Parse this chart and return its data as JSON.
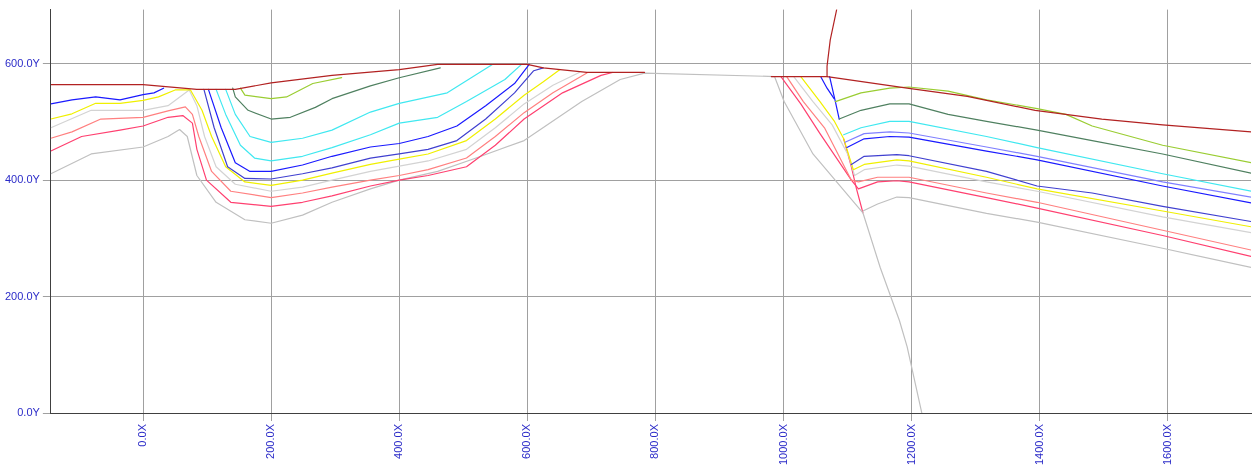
{
  "chart_data": {
    "type": "line",
    "marker": "none",
    "line_style": "solid",
    "grid": true,
    "legend": false,
    "xlim": [
      -144,
      1730
    ],
    "ylim": [
      0,
      693
    ],
    "xticks": [
      {
        "value": 0,
        "label": "0.0X"
      },
      {
        "value": 200,
        "label": "200.0X"
      },
      {
        "value": 400,
        "label": "400.0X"
      },
      {
        "value": 600,
        "label": "600.0X"
      },
      {
        "value": 800,
        "label": "800.0X"
      },
      {
        "value": 1000,
        "label": "1000.0X"
      },
      {
        "value": 1200,
        "label": "1200.0X"
      },
      {
        "value": 1400,
        "label": "1400.0X"
      },
      {
        "value": 1600,
        "label": "1600.0X"
      }
    ],
    "yticks": [
      {
        "value": 0,
        "label": "0.0Y"
      },
      {
        "value": 200,
        "label": "200.0Y"
      },
      {
        "value": 400,
        "label": "400.0Y"
      },
      {
        "value": 600,
        "label": "600.0Y"
      }
    ],
    "series": [
      {
        "color": "#b22222",
        "x": [
          -144,
          0,
          84,
          144,
          200,
          295,
          400,
          460,
          550,
          600,
          625,
          693,
          783
        ],
        "values": [
          564,
          564,
          556,
          556,
          567,
          580,
          590,
          599,
          599,
          599,
          593,
          585,
          585
        ]
      },
      {
        "color": "#b22222",
        "x": [
          981,
          1068,
          1193,
          1287,
          1393,
          1497,
          1592,
          1730
        ],
        "values": [
          578,
          578,
          558,
          544,
          520,
          505,
          495,
          483
        ]
      },
      {
        "color": "#b22222",
        "x": [
          1083,
          1073,
          1068,
          1068
        ],
        "values": [
          693,
          641,
          596,
          578
        ]
      },
      {
        "color": "#9acd32",
        "x": [
          152,
          159,
          200,
          224,
          265,
          310
        ],
        "values": [
          558,
          546,
          540,
          543,
          566,
          576
        ]
      },
      {
        "color": "#4f8060",
        "x": [
          140,
          144,
          164,
          200,
          230,
          269,
          295,
          355,
          400,
          464
        ],
        "values": [
          558,
          543,
          520,
          505,
          508,
          525,
          540,
          562,
          576,
          593
        ]
      },
      {
        "color": "#40e8f0",
        "x": [
          129,
          144,
          167,
          200,
          249,
          295,
          355,
          400,
          475,
          546
        ],
        "values": [
          556,
          513,
          475,
          465,
          472,
          486,
          517,
          532,
          550,
          599
        ]
      },
      {
        "color": "#40e8f0",
        "x": [
          114,
          129,
          152,
          174,
          200,
          249,
          295,
          355,
          400,
          460,
          505,
          565,
          591
        ],
        "values": [
          556,
          513,
          460,
          438,
          433,
          441,
          456,
          478,
          498,
          508,
          535,
          573,
          599
        ]
      },
      {
        "color": "#1a1aff",
        "x": [
          102,
          122,
          144,
          167,
          200,
          249,
          295,
          355,
          400,
          445,
          490,
          535,
          580,
          603
        ],
        "values": [
          556,
          490,
          430,
          415,
          415,
          426,
          441,
          457,
          463,
          475,
          493,
          528,
          566,
          599
        ]
      },
      {
        "color": "#4040d0",
        "x": [
          95,
          111,
          132,
          159,
          200,
          249,
          295,
          355,
          400,
          445,
          490,
          535,
          580,
          610,
          625
        ],
        "values": [
          556,
          490,
          423,
          403,
          402,
          411,
          421,
          438,
          445,
          453,
          468,
          505,
          550,
          588,
          593
        ]
      },
      {
        "color": "#1a1aff",
        "x": [
          -144,
          -111,
          -74,
          -36,
          0,
          17,
          32
        ],
        "values": [
          531,
          538,
          543,
          538,
          547,
          550,
          558
        ]
      },
      {
        "color": "#f0f000",
        "x": [
          -144,
          -111,
          -74,
          -36,
          0,
          24,
          50,
          74,
          92,
          107,
          129,
          159,
          200,
          249,
          295,
          355,
          400,
          445,
          505,
          550,
          595,
          625,
          651
        ],
        "values": [
          505,
          514,
          532,
          532,
          537,
          543,
          555,
          555,
          520,
          475,
          423,
          397,
          391,
          400,
          412,
          427,
          436,
          445,
          468,
          505,
          546,
          569,
          590
        ]
      },
      {
        "color": "#d3d3d3",
        "x": [
          -144,
          -81,
          -36,
          0,
          39,
          72,
          84,
          96,
          114,
          144,
          200,
          249,
          295,
          355,
          400,
          445,
          505,
          550,
          595,
          640,
          681
        ],
        "values": [
          490,
          520,
          520,
          520,
          528,
          555,
          528,
          475,
          423,
          393,
          381,
          388,
          400,
          415,
          424,
          433,
          453,
          490,
          531,
          563,
          585
        ]
      },
      {
        "color": "#ff8080",
        "x": [
          -144,
          -111,
          -66,
          0,
          39,
          66,
          77,
          87,
          107,
          137,
          200,
          249,
          295,
          355,
          400,
          445,
          505,
          550,
          595,
          640,
          693
        ],
        "values": [
          472,
          483,
          505,
          508,
          519,
          526,
          513,
          475,
          415,
          381,
          370,
          378,
          388,
          400,
          408,
          418,
          438,
          475,
          516,
          550,
          584
        ]
      },
      {
        "color": "#ff4070",
        "x": [
          -144,
          -96,
          -36,
          0,
          39,
          62,
          77,
          84,
          99,
          137,
          200,
          249,
          295,
          355,
          400,
          445,
          505,
          550,
          595,
          655,
          715,
          733
        ],
        "values": [
          450,
          475,
          486,
          493,
          508,
          511,
          498,
          453,
          400,
          362,
          355,
          362,
          373,
          390,
          400,
          408,
          423,
          460,
          505,
          550,
          580,
          585
        ]
      },
      {
        "color": "#c0c0c0",
        "x": [
          -144,
          -81,
          0,
          39,
          57,
          69,
          84,
          114,
          159,
          200,
          249,
          295,
          355,
          400,
          460,
          520,
          595,
          685,
          745,
          783,
          986,
          1001,
          1046,
          1124,
          1151,
          1181,
          1193,
          1216
        ],
        "values": [
          411,
          445,
          457,
          475,
          487,
          475,
          408,
          362,
          332,
          326,
          340,
          362,
          385,
          400,
          415,
          438,
          468,
          535,
          573,
          584,
          578,
          535,
          445,
          344,
          250,
          159,
          114,
          0
        ]
      },
      {
        "color": "#9acd32",
        "x": [
          1081,
          1121,
          1166,
          1196,
          1257,
          1317,
          1396,
          1441,
          1482,
          1592,
          1730
        ],
        "values": [
          535,
          550,
          558,
          560,
          553,
          538,
          523,
          513,
          493,
          460,
          430
        ]
      },
      {
        "color": "#4f8060",
        "x": [
          1087,
          1121,
          1166,
          1196,
          1257,
          1317,
          1396,
          1482,
          1592,
          1730
        ],
        "values": [
          505,
          520,
          531,
          531,
          513,
          501,
          486,
          468,
          445,
          412
        ]
      },
      {
        "color": "#40e8f0",
        "x": [
          1094,
          1121,
          1166,
          1196,
          1317,
          1396,
          1592,
          1730
        ],
        "values": [
          478,
          490,
          501,
          501,
          475,
          456,
          411,
          381
        ]
      },
      {
        "color": "#8080ff",
        "x": [
          1096,
          1126,
          1166,
          1196,
          1317,
          1396,
          1592,
          1730
        ],
        "values": [
          465,
          480,
          483,
          481,
          457,
          441,
          397,
          371
        ]
      },
      {
        "color": "#1a1aff",
        "x": [
          1099,
          1126,
          1166,
          1196,
          1317,
          1396,
          1592,
          1730
        ],
        "values": [
          456,
          471,
          475,
          474,
          450,
          435,
          390,
          361
        ]
      },
      {
        "color": "#4040d0",
        "x": [
          1106,
          1126,
          1177,
          1196,
          1317,
          1396,
          1482,
          1592,
          1730
        ],
        "values": [
          427,
          441,
          444,
          442,
          415,
          390,
          378,
          355,
          329
        ]
      },
      {
        "color": "#f0f000",
        "x": [
          1027,
          1057,
          1079,
          1094,
          1109,
          1126,
          1177,
          1196,
          1317,
          1396,
          1592,
          1730
        ],
        "values": [
          578,
          535,
          502,
          471,
          418,
          427,
          435,
          433,
          405,
          385,
          347,
          320
        ]
      },
      {
        "color": "#d3d3d3",
        "x": [
          1016,
          1046,
          1076,
          1102,
          1111,
          1126,
          1177,
          1196,
          1317,
          1396,
          1592,
          1730
        ],
        "values": [
          578,
          535,
          495,
          441,
          408,
          418,
          426,
          424,
          397,
          381,
          337,
          310
        ]
      },
      {
        "color": "#ff8080",
        "x": [
          1005,
          1031,
          1064,
          1106,
          1117,
          1147,
          1177,
          1196,
          1317,
          1396,
          1592,
          1730
        ],
        "values": [
          578,
          535,
          490,
          400,
          397,
          405,
          405,
          405,
          378,
          362,
          314,
          280
        ]
      },
      {
        "color": "#ff4070",
        "x": [
          996,
          1027,
          1057,
          1081,
          1106,
          1117,
          1147,
          1177,
          1196,
          1317,
          1396,
          1592,
          1730
        ],
        "values": [
          578,
          531,
          480,
          441,
          400,
          385,
          397,
          399,
          397,
          370,
          352,
          305,
          269
        ]
      },
      {
        "color": "#c0c0c0",
        "x": [
          1124,
          1147,
          1177,
          1196,
          1317,
          1396,
          1592,
          1730
        ],
        "values": [
          347,
          359,
          371,
          370,
          343,
          328,
          283,
          250
        ]
      },
      {
        "color": "#1a1aff",
        "x": [
          1072,
          1081,
          1087
        ],
        "values": [
          578,
          535,
          505
        ]
      },
      {
        "color": "#ff4070",
        "x": [
          1094,
          1106,
          1114,
          1124
        ],
        "values": [
          471,
          423,
          385,
          344
        ]
      },
      {
        "color": "#1a1aff",
        "x": [
          1058,
          1068,
          1079
        ],
        "values": [
          578,
          558,
          540
        ]
      }
    ]
  }
}
